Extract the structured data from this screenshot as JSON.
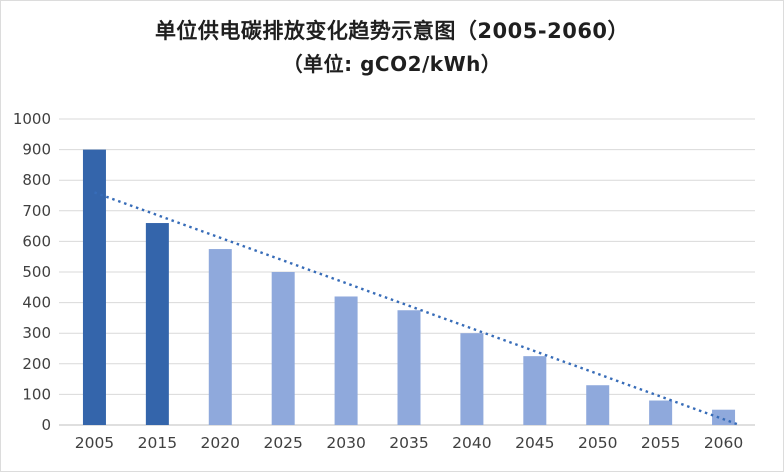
{
  "chart_data": {
    "type": "bar",
    "title": "单位供电碳排放变化趋势示意图（2005-2060）",
    "subtitle": "（单位: gCO2/kWh）",
    "categories": [
      "2005",
      "2015",
      "2020",
      "2025",
      "2030",
      "2035",
      "2040",
      "2045",
      "2050",
      "2055",
      "2060"
    ],
    "values": [
      900,
      660,
      575,
      500,
      420,
      375,
      300,
      225,
      130,
      80,
      50
    ],
    "bar_colors": [
      "#3465ab",
      "#3465ab",
      "#8fa9dc",
      "#8fa9dc",
      "#8fa9dc",
      "#8fa9dc",
      "#8fa9dc",
      "#8fa9dc",
      "#8fa9dc",
      "#8fa9dc",
      "#8fa9dc"
    ],
    "trendline": {
      "style": "dotted",
      "start_value": 760,
      "end_value": 0,
      "color": "#376cb8"
    },
    "xlabel": "",
    "ylabel": "",
    "ylim": [
      0,
      1000
    ],
    "yticks": [
      0,
      100,
      200,
      300,
      400,
      500,
      600,
      700,
      800,
      900,
      1000
    ],
    "grid": true,
    "legend": "none",
    "colors": {
      "gridline": "#d9d9d9",
      "axis_line": "#bfbfbf",
      "tick_text": "#404040",
      "title_text": "#1f1f1f",
      "background": "#ffffff"
    }
  }
}
